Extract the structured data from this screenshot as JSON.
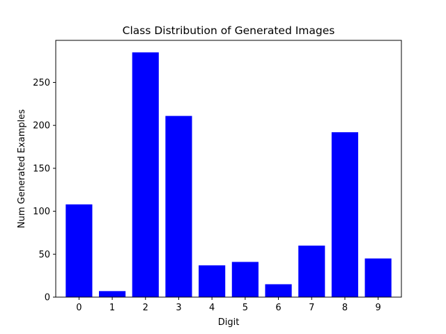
{
  "chart_data": {
    "type": "bar",
    "title": "Class Distribution of Generated Images",
    "xlabel": "Digit",
    "ylabel": "Num Generated Examples",
    "categories": [
      "0",
      "1",
      "2",
      "3",
      "4",
      "5",
      "6",
      "7",
      "8",
      "9"
    ],
    "values": [
      108,
      7,
      285,
      211,
      37,
      41,
      15,
      60,
      192,
      45
    ],
    "ylim": [
      0,
      299
    ],
    "yticks": [
      0,
      50,
      100,
      150,
      200,
      250
    ],
    "bar_color": "#0000ff",
    "grid": false,
    "legend": "none"
  }
}
